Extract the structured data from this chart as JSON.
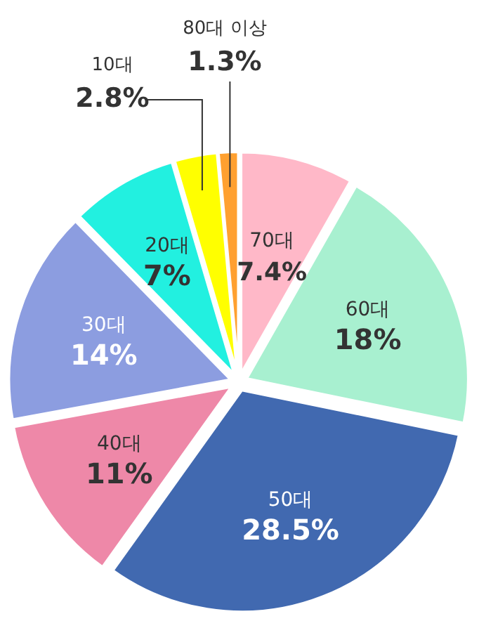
{
  "chart_data": {
    "type": "pie",
    "categories": [
      "70대",
      "60대",
      "50대",
      "40대",
      "30대",
      "20대",
      "10대",
      "80대 이상"
    ],
    "values": [
      7.4,
      18,
      28.5,
      11,
      14,
      7,
      2.8,
      1.3
    ],
    "value_labels": [
      "7.4%",
      "18%",
      "28.5%",
      "11%",
      "14%",
      "7%",
      "2.8%",
      "1.3%"
    ],
    "colors": [
      "#ffb8c8",
      "#a8f0d0",
      "#4169b0",
      "#ee88a8",
      "#8c9de0",
      "#22f0e0",
      "#ffff00",
      "#ffa030"
    ]
  }
}
